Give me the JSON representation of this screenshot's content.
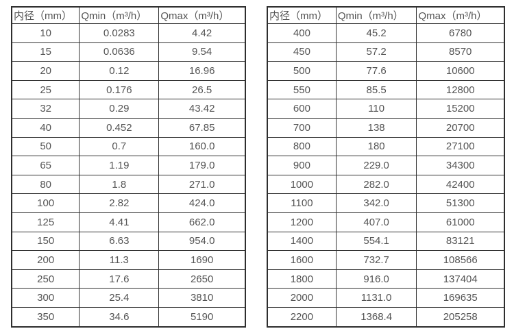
{
  "colors": {
    "background": "#ffffff",
    "border": "#2e2e2e",
    "text": "#545454"
  },
  "tables": [
    {
      "name": "flow-spec-table-small-diameters",
      "headers": [
        "内径（mm）",
        "Qmin（m³/h）",
        "Qmax（m³/h）"
      ],
      "rows": [
        [
          "10",
          "0.0283",
          "4.42"
        ],
        [
          "15",
          "0.0636",
          "9.54"
        ],
        [
          "20",
          "0.12",
          "16.96"
        ],
        [
          "25",
          "0.176",
          "26.5"
        ],
        [
          "32",
          "0.29",
          "43.42"
        ],
        [
          "40",
          "0.452",
          "67.85"
        ],
        [
          "50",
          "0.7",
          "160.0"
        ],
        [
          "65",
          "1.19",
          "179.0"
        ],
        [
          "80",
          "1.8",
          "271.0"
        ],
        [
          "100",
          "2.82",
          "424.0"
        ],
        [
          "125",
          "4.41",
          "662.0"
        ],
        [
          "150",
          "6.63",
          "954.0"
        ],
        [
          "200",
          "11.3",
          "1690"
        ],
        [
          "250",
          "17.6",
          "2650"
        ],
        [
          "300",
          "25.4",
          "3810"
        ],
        [
          "350",
          "34.6",
          "5190"
        ]
      ]
    },
    {
      "name": "flow-spec-table-large-diameters",
      "headers": [
        "内径（mm）",
        "Qmin（m³/h）",
        "Qmax（m³/h）"
      ],
      "rows": [
        [
          "400",
          "45.2",
          "6780"
        ],
        [
          "450",
          "57.2",
          "8570"
        ],
        [
          "500",
          "77.6",
          "10600"
        ],
        [
          "550",
          "85.5",
          "12800"
        ],
        [
          "600",
          "110",
          "15200"
        ],
        [
          "700",
          "138",
          "20700"
        ],
        [
          "800",
          "180",
          "27100"
        ],
        [
          "900",
          "229.0",
          "34300"
        ],
        [
          "1000",
          "282.0",
          "42400"
        ],
        [
          "1100",
          "342.0",
          "51300"
        ],
        [
          "1200",
          "407.0",
          "61000"
        ],
        [
          "1400",
          "554.1",
          "83121"
        ],
        [
          "1600",
          "732.7",
          "108566"
        ],
        [
          "1800",
          "916.0",
          "137404"
        ],
        [
          "2000",
          "1131.0",
          "169635"
        ],
        [
          "2200",
          "1368.4",
          "205258"
        ]
      ]
    }
  ]
}
